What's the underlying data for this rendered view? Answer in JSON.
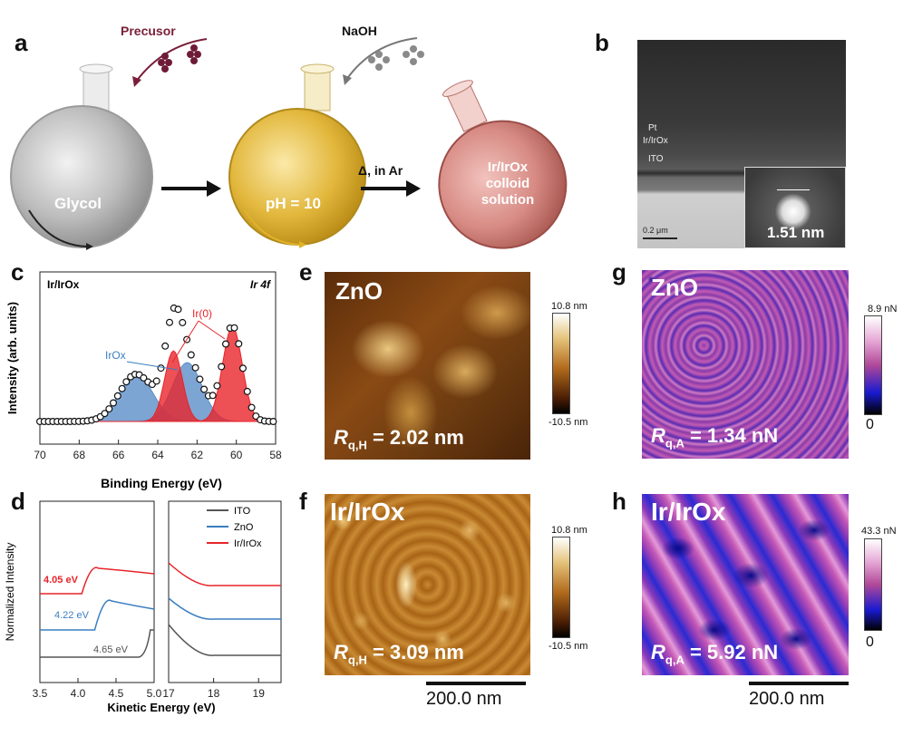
{
  "panel_labels": {
    "a": "a",
    "b": "b",
    "c": "c",
    "d": "d",
    "e": "e",
    "f": "f",
    "g": "g",
    "h": "h"
  },
  "panel_a": {
    "precursor": "Precusor",
    "naoh": "NaOH",
    "glycol": "Glycol",
    "ph": "pH = 10",
    "condition": "Δ, in Ar",
    "colloid_line1": "Ir/IrOx",
    "colloid_line2": "colloid",
    "colloid_line3": "solution"
  },
  "panel_b": {
    "pt": "Pt",
    "irirox": "Ir/IrOx",
    "ito": "ITO",
    "scale": "0.2 μm",
    "particle_size": "1.51 nm"
  },
  "panel_c": {
    "sample": "Ir/IrOx",
    "orbital": "Ir 4f",
    "ir0": "Ir(0)",
    "irox": "IrOx",
    "ylabel": "Intensity (arb. units)",
    "xlabel": "Binding Energy (eV)"
  },
  "panel_d": {
    "ylabel": "Normalized Intensity",
    "xlabel": "Kinetic Energy (eV)",
    "legend": [
      "ITO",
      "ZnO",
      "Ir/IrOx"
    ],
    "wf_irirox": "4.05 eV",
    "wf_zno": "4.22 eV",
    "wf_ito": "4.65 eV"
  },
  "panel_e": {
    "material": "ZnO",
    "roughness": "= 2.02 nm",
    "cb_max": "10.8 nm",
    "cb_min": "-10.5 nm"
  },
  "panel_f": {
    "material": "Ir/IrOx",
    "roughness": "= 3.09 nm",
    "cb_max": "10.8 nm",
    "cb_min": "-10.5 nm",
    "scalebar": "200.0 nm"
  },
  "panel_g": {
    "material": "ZnO",
    "roughness": "= 1.34 nN",
    "cb_max": "8.9 nN",
    "cb_min": "0"
  },
  "panel_h": {
    "material": "Ir/IrOx",
    "roughness": "= 5.92 nN",
    "cb_max": "43.3 nN",
    "cb_min": "0",
    "scalebar": "200.0 nm"
  },
  "colors": {
    "ito": "#555555",
    "zno": "#3a7fc1",
    "irirox": "#e8242a",
    "irox_fill": "#5b8fc8",
    "ir0_fill": "#e8242a"
  },
  "chart_data": [
    {
      "type": "line",
      "panel": "c",
      "xlabel": "Binding Energy (eV)",
      "ylabel": "Intensity (arb. units)",
      "xlim": [
        70,
        58
      ],
      "x_ticks": [
        70,
        68,
        66,
        64,
        62,
        60,
        58
      ],
      "series": [
        {
          "name": "Ir(0)",
          "peaks_eV": [
            63.2,
            60.2
          ]
        },
        {
          "name": "IrOx",
          "peaks_eV": [
            65.1,
            62.5
          ]
        }
      ]
    },
    {
      "type": "line",
      "panel": "d",
      "xlabel": "Kinetic Energy (eV)",
      "ylabel": "Normalized Intensity",
      "x_ticks_left": [
        3.5,
        4.0,
        4.5,
        5.0
      ],
      "x_ticks_right": [
        17,
        18,
        19
      ],
      "series": [
        {
          "name": "ITO",
          "onset_eV": 4.65
        },
        {
          "name": "ZnO",
          "onset_eV": 4.22
        },
        {
          "name": "Ir/IrOx",
          "onset_eV": 4.05
        }
      ]
    }
  ]
}
